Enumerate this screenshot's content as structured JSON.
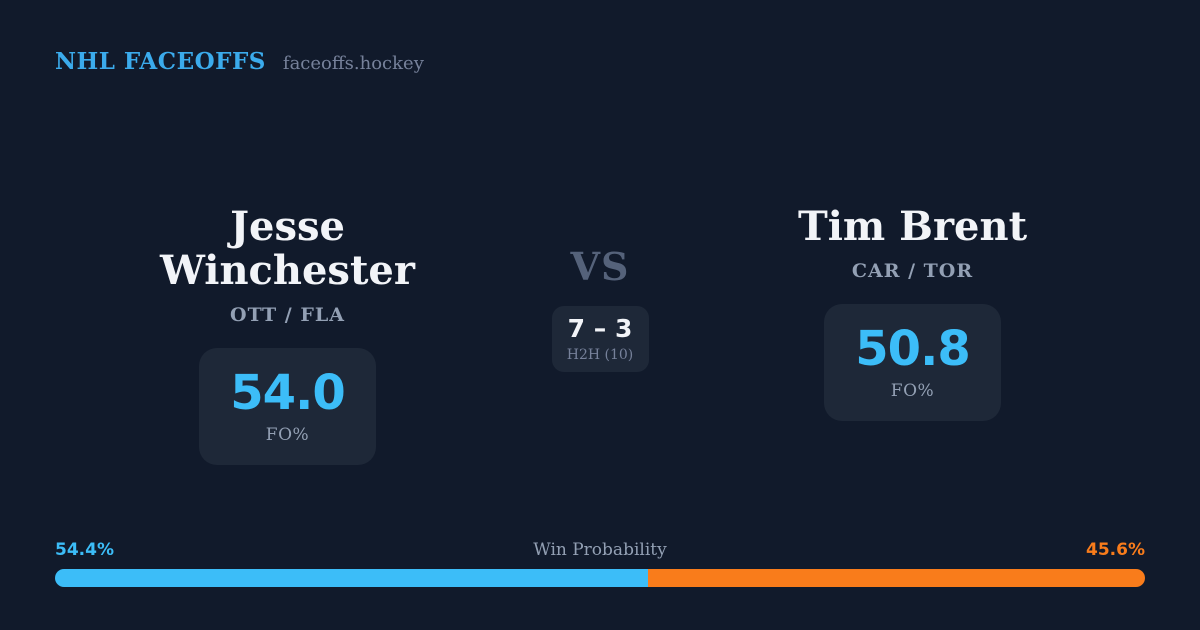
{
  "header": {
    "brand": "NHL FACEOFFS",
    "site": "faceoffs.hockey"
  },
  "players": [
    {
      "name": "Jesse Winchester",
      "teams": "OTT / FLA",
      "fo_value": "54.0",
      "fo_label": "FO%"
    },
    {
      "name": "Tim Brent",
      "teams": "CAR / TOR",
      "fo_value": "50.8",
      "fo_label": "FO%"
    }
  ],
  "center": {
    "vs_label": "VS",
    "h2h_score": "7 – 3",
    "h2h_label": "H2H (10)"
  },
  "win_probability": {
    "label": "Win Probability",
    "left_label": "54.4%",
    "right_label": "45.6%",
    "left_value": 54.4,
    "right_value": 45.6
  },
  "colors": {
    "background": "#111a2b",
    "card": "#1e2838",
    "accent_blue": "#3cbdf8",
    "accent_orange": "#f97c1b",
    "heading_blue": "#3babec",
    "vs_color": "#55627a",
    "text_primary": "#f2f4f8",
    "text_muted": "#93a0b4",
    "text_dim": "#76819a"
  }
}
